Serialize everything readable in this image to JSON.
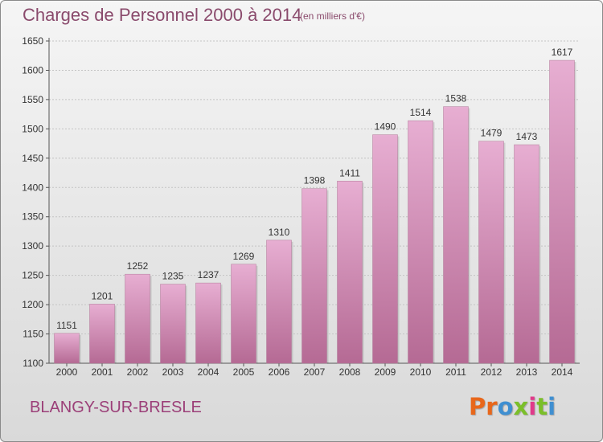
{
  "header": {
    "title": "Charges de Personnel 2000 à 2014",
    "subtitle": "(en milliers d'€)"
  },
  "footer": {
    "commune": "BLANGY-SUR-BRESLE",
    "logo_text": "Proxiti",
    "logo_colors": [
      "#e8671b",
      "#e8671b",
      "#3f8fd1",
      "#7bbf2a",
      "#e03a8a",
      "#7bbf2a",
      "#3f8fd1"
    ]
  },
  "colors": {
    "bar_top": "#e7aed2",
    "bar_bottom": "#b56a94",
    "text": "#333333",
    "accent": "#8a4a6c"
  },
  "chart_data": {
    "type": "bar",
    "title": "Charges de Personnel 2000 à 2014",
    "subtitle": "(en milliers d'€)",
    "categories": [
      "2000",
      "2001",
      "2002",
      "2003",
      "2004",
      "2005",
      "2006",
      "2007",
      "2008",
      "2009",
      "2010",
      "2011",
      "2012",
      "2013",
      "2014"
    ],
    "values": [
      1151,
      1201,
      1252,
      1235,
      1237,
      1269,
      1310,
      1398,
      1411,
      1490,
      1514,
      1538,
      1479,
      1473,
      1617
    ],
    "ylim": [
      1100,
      1650
    ],
    "yticks": [
      1100,
      1150,
      1200,
      1250,
      1300,
      1350,
      1400,
      1450,
      1500,
      1550,
      1600,
      1650
    ],
    "grid": true,
    "show_data_labels": true
  }
}
